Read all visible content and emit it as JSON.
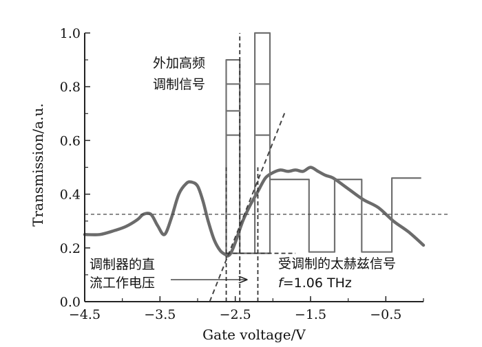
{
  "chart_data": {
    "type": "line",
    "xlabel": "Gate voltage/V",
    "ylabel": "Transmission/a.u.",
    "xlim": [
      -4.5,
      0.0
    ],
    "ylim": [
      0.0,
      1.0
    ],
    "x_ticks": [
      {
        "value": -4.5,
        "label": "−4.5"
      },
      {
        "value": -3.5,
        "label": "−3.5"
      },
      {
        "value": -2.5,
        "label": "−2.5"
      },
      {
        "value": -1.5,
        "label": "−1.5"
      },
      {
        "value": -0.5,
        "label": "−0.5"
      }
    ],
    "y_ticks": [
      {
        "value": 0.0,
        "label": "0.0"
      },
      {
        "value": 0.2,
        "label": "0.2"
      },
      {
        "value": 0.4,
        "label": "0.4"
      },
      {
        "value": 0.6,
        "label": "0.6"
      },
      {
        "value": 0.8,
        "label": "0.8"
      },
      {
        "value": 1.0,
        "label": "1.0"
      }
    ],
    "series": [
      {
        "style": "thick-solid",
        "color": "#6b6b6b",
        "x": [
          -4.5,
          -4.3,
          -4.1,
          -3.95,
          -3.8,
          -3.72,
          -3.62,
          -3.53,
          -3.44,
          -3.35,
          -3.25,
          -3.15,
          -3.08,
          -3.0,
          -2.93,
          -2.86,
          -2.78,
          -2.7,
          -2.63,
          -2.6,
          -2.56,
          -2.5,
          -2.4,
          -2.3,
          -2.2,
          -2.1,
          -2.0,
          -1.9,
          -1.8,
          -1.7,
          -1.6,
          -1.5,
          -1.4,
          -1.3,
          -1.2,
          -1.0,
          -0.8,
          -0.6,
          -0.4,
          -0.2,
          0.0
        ],
        "y": [
          0.25,
          0.25,
          0.265,
          0.28,
          0.305,
          0.325,
          0.325,
          0.282,
          0.25,
          0.31,
          0.4,
          0.44,
          0.445,
          0.43,
          0.375,
          0.3,
          0.23,
          0.19,
          0.175,
          0.17,
          0.18,
          0.22,
          0.3,
          0.36,
          0.41,
          0.46,
          0.48,
          0.49,
          0.485,
          0.49,
          0.485,
          0.5,
          0.485,
          0.47,
          0.46,
          0.42,
          0.38,
          0.35,
          0.3,
          0.26,
          0.21
        ]
      },
      {
        "style": "step-solid",
        "color": "#707070",
        "x": [
          -2.62,
          -2.62,
          -2.44,
          -2.44,
          -2.62,
          -2.62,
          -2.44,
          -2.44,
          -2.62,
          -2.62,
          -2.44,
          -2.44,
          -2.62,
          -2.62,
          -2.44,
          -2.44,
          -2.24,
          -2.24,
          -2.04,
          -2.04,
          -2.24,
          -2.24,
          -2.04,
          -2.04,
          -2.24,
          -2.24,
          -2.04,
          -2.04
        ],
        "y": [
          0.18,
          0.62,
          0.62,
          0.18,
          0.18,
          0.71,
          0.71,
          0.18,
          0.18,
          0.81,
          0.81,
          0.18,
          0.18,
          0.9,
          0.9,
          0.18,
          0.18,
          0.62,
          0.62,
          0.18,
          0.18,
          0.81,
          0.81,
          0.18,
          0.18,
          1.0,
          1.0,
          0.18
        ]
      },
      {
        "style": "step-solid-x",
        "color": "#707070",
        "x": [
          -2.04,
          -1.52,
          -1.52,
          -1.18,
          -1.18,
          -0.82,
          -0.82,
          -0.42,
          -0.42,
          -0.03
        ],
        "y": [
          0.455,
          0.455,
          0.185,
          0.185,
          0.455,
          0.455,
          0.185,
          0.185,
          0.46,
          0.46
        ]
      },
      {
        "style": "dashed-tangent",
        "color": "#444444",
        "x": [
          -2.84,
          -1.84
        ],
        "y": [
          0.0,
          0.705
        ]
      },
      {
        "style": "dashed-hline",
        "color": "#444444",
        "x": [
          -4.5,
          0.35
        ],
        "y": [
          0.325,
          0.325
        ]
      }
    ],
    "vlines": [
      -2.62,
      -2.44,
      -2.2
    ],
    "annotations": {
      "top_left": [
        "外加高频",
        "调制信号"
      ],
      "bottom_left": [
        "调制器的直",
        "流工作电压"
      ],
      "bottom_right": "受调制的太赫兹信号",
      "freq_f": "f",
      "freq_value": "=1.06 THz"
    }
  }
}
